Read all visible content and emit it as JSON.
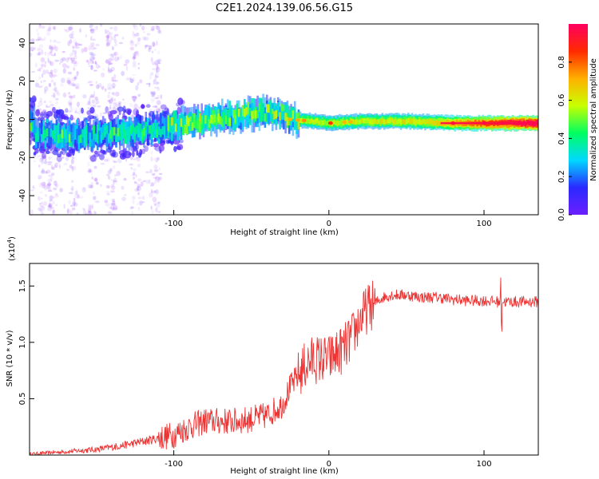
{
  "title": "C2E1.2024.139.06.56.G15",
  "colors": {
    "line": "#ee3333",
    "spectrum_stops": [
      "#6b1fff",
      "#2a2aff",
      "#00d8ff",
      "#00ff60",
      "#c8ff00",
      "#ffb000",
      "#ff2a00",
      "#ff0060"
    ]
  },
  "chart_data": [
    {
      "type": "heatmap",
      "title": "C2E1.2024.139.06.56.G15",
      "xlabel": "Height of straight line (km)",
      "ylabel": "Frequency (Hz)",
      "xlim": [
        -193,
        135
      ],
      "ylim": [
        -50,
        50
      ],
      "xticks": [
        -100,
        0,
        100
      ],
      "yticks": [
        40,
        20,
        0,
        -20,
        -40
      ],
      "colorbar": {
        "label": "Normalized spectral amplitude",
        "range": [
          0,
          1
        ],
        "ticks": [
          0.0,
          0.2,
          0.4,
          0.6,
          0.8
        ]
      },
      "ridge": [
        {
          "x": -190,
          "freq": -8
        },
        {
          "x": -150,
          "freq": -8
        },
        {
          "x": -120,
          "freq": -6
        },
        {
          "x": -100,
          "freq": -3
        },
        {
          "x": -80,
          "freq": 0
        },
        {
          "x": -60,
          "freq": 2
        },
        {
          "x": -40,
          "freq": 4
        },
        {
          "x": -25,
          "freq": 0
        },
        {
          "x": -10,
          "freq": -1
        },
        {
          "x": 0,
          "freq": -2
        },
        {
          "x": 20,
          "freq": -1
        },
        {
          "x": 50,
          "freq": -1
        },
        {
          "x": 80,
          "freq": -2
        },
        {
          "x": 110,
          "freq": -2
        },
        {
          "x": 135,
          "freq": -2
        }
      ]
    },
    {
      "type": "line",
      "xlabel": "Height of straight line (km)",
      "ylabel": "SNR (10 * v/v)",
      "multiplier_label": "(x10",
      "multiplier_exp": "4",
      "multiplier_close": ")",
      "xlim": [
        -193,
        135
      ],
      "ylim": [
        0,
        1.7
      ],
      "xticks": [
        -100,
        0,
        100
      ],
      "yticks": [
        0.5,
        1.0,
        1.5
      ],
      "series": [
        {
          "x": [
            -193,
            -170,
            -150,
            -135,
            -120,
            -110,
            -100,
            -90,
            -80,
            -70,
            -60,
            -50,
            -40,
            -30,
            -25,
            -20,
            -15,
            -10,
            -5,
            0,
            5,
            10,
            15,
            20,
            25,
            30,
            35,
            40,
            50,
            60,
            70,
            80,
            90,
            100,
            110,
            120,
            135
          ],
          "values": [
            0.01,
            0.03,
            0.05,
            0.08,
            0.12,
            0.15,
            0.18,
            0.25,
            0.3,
            0.3,
            0.3,
            0.32,
            0.35,
            0.45,
            0.6,
            0.7,
            0.8,
            0.85,
            0.85,
            0.85,
            0.9,
            0.95,
            1.05,
            1.2,
            1.3,
            1.35,
            1.4,
            1.42,
            1.42,
            1.4,
            1.4,
            1.38,
            1.37,
            1.37,
            1.36,
            1.36,
            1.36
          ]
        }
      ]
    }
  ]
}
